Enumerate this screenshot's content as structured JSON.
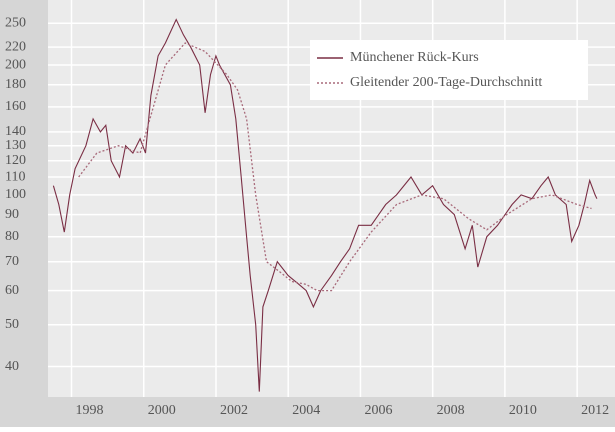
{
  "chart_data": {
    "type": "line",
    "log_y": true,
    "grid": true,
    "legend_position": "upper right",
    "xlim": [
      1996.85,
      2012.55
    ],
    "xticks": [
      1998,
      2000,
      2002,
      2004,
      2006,
      2008,
      2010,
      2012
    ],
    "ylim": [
      34,
      283
    ],
    "yticks": [
      40,
      50,
      60,
      70,
      80,
      90,
      100,
      110,
      120,
      130,
      140,
      160,
      180,
      200,
      220,
      250
    ],
    "series": [
      {
        "name": "Münchener Rück-Kurs",
        "color": "#7a2e44",
        "style": "solid",
        "x": [
          1997.0,
          1997.15,
          1997.3,
          1997.45,
          1997.6,
          1997.9,
          1998.1,
          1998.3,
          1998.45,
          1998.6,
          1998.83,
          1999.0,
          1999.2,
          1999.4,
          1999.55,
          1999.7,
          1999.9,
          2000.1,
          2000.4,
          2000.6,
          2000.8,
          2001.05,
          2001.2,
          2001.35,
          2001.5,
          2001.6,
          2001.9,
          2002.05,
          2002.2,
          2002.35,
          2002.45,
          2002.6,
          2002.7,
          2002.8,
          2002.95,
          2003.2,
          2003.5,
          2003.8,
          2004.0,
          2004.2,
          2004.4,
          2004.7,
          2004.95,
          2005.2,
          2005.45,
          2005.8,
          2006.2,
          2006.5,
          2006.9,
          2007.2,
          2007.5,
          2007.8,
          2008.1,
          2008.4,
          2008.6,
          2008.75,
          2009.0,
          2009.3,
          2009.7,
          2009.95,
          2010.25,
          2010.5,
          2010.7,
          2010.9,
          2011.2,
          2011.35,
          2011.55,
          2011.7,
          2011.85,
          2012.0,
          2012.05
        ],
        "values": [
          105,
          95,
          82,
          100,
          115,
          130,
          150,
          140,
          145,
          120,
          110,
          130,
          125,
          135,
          125,
          170,
          210,
          225,
          255,
          235,
          220,
          200,
          155,
          190,
          210,
          200,
          180,
          150,
          110,
          80,
          65,
          50,
          35,
          55,
          60,
          70,
          65,
          62,
          60,
          55,
          60,
          65,
          70,
          75,
          85,
          85,
          95,
          100,
          110,
          100,
          105,
          95,
          90,
          75,
          85,
          68,
          80,
          85,
          95,
          100,
          98,
          105,
          110,
          100,
          95,
          78,
          85,
          95,
          108,
          100,
          98
        ]
      },
      {
        "name": "Gleitender 200-Tage-Durchschnitt",
        "color": "#a86a7a",
        "style": "dotted",
        "x": [
          1997.7,
          1998.2,
          1998.8,
          1999.4,
          2000.1,
          2000.65,
          2001.2,
          2001.8,
          2002.1,
          2002.35,
          2002.6,
          2002.9,
          2003.3,
          2003.6,
          2004.0,
          2004.3,
          2004.7,
          2005.2,
          2005.8,
          2006.5,
          2007.2,
          2007.8,
          2008.5,
          2009.0,
          2009.55,
          2010.25,
          2010.8,
          2011.5,
          2011.9
        ],
        "values": [
          110,
          125,
          130,
          125,
          200,
          225,
          215,
          190,
          175,
          150,
          100,
          70,
          66,
          63,
          62,
          60,
          60,
          70,
          82,
          95,
          100,
          98,
          88,
          83,
          90,
          98,
          100,
          95,
          93
        ]
      }
    ]
  }
}
